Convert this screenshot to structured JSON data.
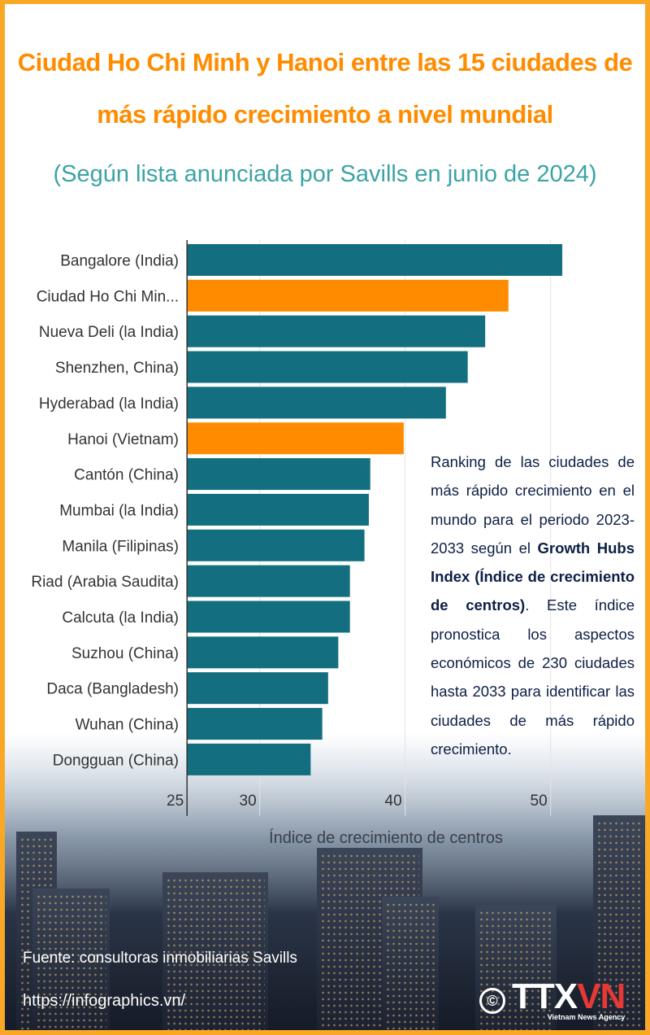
{
  "header": {
    "title_line1": "Ciudad Ho Chi Minh y Hanoi entre las 15 ciudades de",
    "title_line2": "más rápido crecimiento a nivel mundial",
    "subtitle": "(Según lista anunciada por Savills en junio de 2024)"
  },
  "colors": {
    "title": "#ff8c00",
    "subtitle": "#3ba3a6",
    "bar_default": "#136f80",
    "bar_highlight": "#ff8c00",
    "frame": "#f9a825"
  },
  "chart_data": {
    "type": "bar",
    "orientation": "horizontal",
    "title": "",
    "xlabel": "Índice de crecimiento de centros",
    "ylabel": "",
    "xlim": [
      25,
      52
    ],
    "xticks": [
      25,
      30,
      40,
      50
    ],
    "grid": true,
    "categories": [
      "Bangalore (India)",
      "Ciudad Ho Chi Min...",
      "Nueva Deli (la India)",
      "Shenzhen, China)",
      "Hyderabad (la India)",
      "Hanoi (Vietnam)",
      "Cantón (China)",
      "Mumbai (la India)",
      "Manila (Filipinas)",
      "Riad (Arabia Saudita)",
      "Calcuta (la India)",
      "Suzhou (China)",
      "Daca (Bangladesh)",
      "Wuhan (China)",
      "Dongguan (China)"
    ],
    "values": [
      50.8,
      47.1,
      45.5,
      44.3,
      42.8,
      39.9,
      37.6,
      37.5,
      37.2,
      36.2,
      36.2,
      35.4,
      34.7,
      34.3,
      33.5
    ],
    "highlighted": [
      "Ciudad Ho Chi Min...",
      "Hanoi (Vietnam)"
    ]
  },
  "note": {
    "text_before": "Ranking de las ciudades de más rápido crecimiento en el mundo para el periodo 2023-2033 según el ",
    "bold": "Growth Hubs Index (Índice de crecimiento de centros)",
    "text_after": ". Este índice pronostica los aspectos económicos de 230 ciudades hasta 2033 para identificar las ciudades de más rápido crecimiento."
  },
  "footer": {
    "source": "Fuente: consultoras inmobiliarias Savills",
    "url": "https://infographics.vn/",
    "copyright_symbol": "©",
    "brand_prefix": "TTX",
    "brand_suffix": "VN",
    "brand_tagline": "Vietnam News Agency"
  }
}
